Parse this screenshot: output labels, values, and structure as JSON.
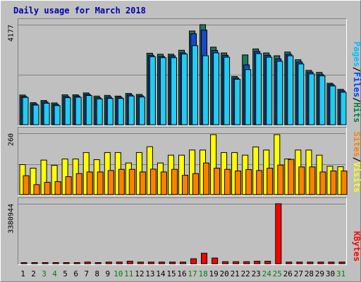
{
  "chart_data": {
    "type": "bar",
    "title": "Daily usage for March 2018",
    "categories": [
      "1",
      "2",
      "3",
      "4",
      "5",
      "6",
      "7",
      "8",
      "9",
      "10",
      "11",
      "12",
      "13",
      "14",
      "15",
      "16",
      "17",
      "18",
      "19",
      "20",
      "21",
      "22",
      "23",
      "24",
      "25",
      "26",
      "27",
      "28",
      "29",
      "30",
      "31"
    ],
    "weekend_days": [
      "3",
      "4",
      "10",
      "11",
      "17",
      "18",
      "24",
      "25",
      "31"
    ],
    "panels": [
      {
        "id": "hits-files-pages",
        "max_label": "4177",
        "ylim": [
          0,
          4177
        ],
        "legend": [
          {
            "text": "Pages",
            "color": "#00c0ff"
          },
          {
            "text": "Files",
            "color": "#0040ff"
          },
          {
            "text": "Hits",
            "color": "#008040"
          }
        ],
        "series": [
          {
            "name": "Hits",
            "color": "#1c7a5c",
            "values": [
              1240,
              925,
              1015,
              913,
              1249,
              1249,
              1329,
              1196,
              1226,
              1196,
              1308,
              1267,
              2986,
              2944,
              2944,
              3109,
              3911,
              4177,
              3239,
              2997,
              2015,
              2914,
              3166,
              2997,
              2880,
              3036,
              2715,
              2271,
              2186,
              1734,
              1480
            ]
          },
          {
            "name": "Files",
            "color": "#1a47c8",
            "values": [
              1180,
              870,
              950,
              850,
              1180,
              1200,
              1270,
              1130,
              1160,
              1150,
              1250,
              1210,
              2900,
              2850,
              2880,
              3000,
              3800,
              3950,
              3100,
              2900,
              1950,
              2500,
              3060,
              2900,
              2750,
              2940,
              2620,
              2200,
              2100,
              1680,
              1420
            ]
          },
          {
            "name": "Pages",
            "color": "#22ccf2",
            "values": [
              1140,
              820,
              900,
              800,
              1130,
              1150,
              1220,
              1080,
              1100,
              1100,
              1200,
              1160,
              2840,
              2800,
              2800,
              2950,
              3300,
              2884,
              3000,
              2820,
              1900,
              2300,
              2970,
              2820,
              2650,
              2880,
              2540,
              2120,
              2040,
              1620,
              1360
            ]
          }
        ]
      },
      {
        "id": "visits-sites",
        "max_label": "260",
        "ylim": [
          0,
          260
        ],
        "legend": [
          {
            "text": "Sites",
            "color": "#ff8000"
          },
          {
            "text": "Visits",
            "color": "#ffff00"
          }
        ],
        "series": [
          {
            "name": "Visits",
            "color": "#ffff00",
            "values": [
              127,
              112,
              146,
              124,
              151,
              151,
              178,
              148,
              178,
              178,
              134,
              178,
              203,
              134,
              167,
              167,
              189,
              189,
              254,
              178,
              178,
              167,
              202,
              189,
              254,
              151,
              189,
              189,
              167,
              120,
              118
            ]
          },
          {
            "name": "Sites",
            "color": "#ff8000",
            "values": [
              80,
              42,
              52,
              55,
              76,
              89,
              96,
              96,
              102,
              107,
              107,
              96,
              108,
              96,
              107,
              82,
              89,
              134,
              112,
              107,
              100,
              106,
              102,
              112,
              125,
              149,
              117,
              117,
              96,
              100,
              100
            ]
          }
        ]
      },
      {
        "id": "kbytes",
        "max_label": "3380944",
        "ylim": [
          0,
          3380944
        ],
        "legend": [
          {
            "text": "KBytes",
            "color": "#ff0000"
          }
        ],
        "series": [
          {
            "name": "KBytes",
            "color": "#ff0000",
            "values": [
              60000,
              60000,
              60000,
              60000,
              60000,
              60000,
              90000,
              60000,
              90000,
              90000,
              140000,
              90000,
              90000,
              90000,
              90000,
              90000,
              280000,
              590000,
              320000,
              110000,
              110000,
              110000,
              140000,
              140000,
              3380944,
              90000,
              90000,
              90000,
              90000,
              90000,
              90000
            ]
          }
        ]
      }
    ]
  }
}
